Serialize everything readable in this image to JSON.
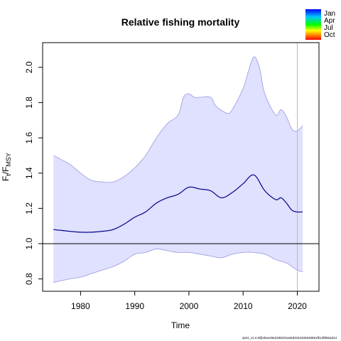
{
  "chart_data": {
    "type": "line",
    "title": "Relative fishing mortality",
    "xlabel": "Time",
    "ylabel_main": "F",
    "ylabel_sub1": "t",
    "ylabel_sep": "/F",
    "ylabel_sub2": "MSY",
    "xlim": [
      1973,
      2024
    ],
    "ylim": [
      0.73,
      2.14
    ],
    "x_ticks": [
      1980,
      1990,
      2000,
      2010,
      2020
    ],
    "y_ticks": [
      0.8,
      1.0,
      1.2,
      1.4,
      1.6,
      1.8,
      2.0
    ],
    "y_tick_labels": [
      "0.8",
      "1.0",
      "1.2",
      "1.4",
      "1.6",
      "1.8",
      "2.0"
    ],
    "reference_line_y": 1.0,
    "vertical_marker_x": 2020,
    "legend": {
      "placement": "top-right",
      "labels": [
        "Jan",
        "Apr",
        "Jul",
        "Oct"
      ],
      "colors": [
        "#0000ff",
        "#00c8ff",
        "#00ff00",
        "#ffff00",
        "#ff8000",
        "#ff0000"
      ]
    },
    "colors": {
      "line": "#00008b",
      "band_fill": "#e0e0ff",
      "band_edge": "#9999dd",
      "marker": "#bbbbbb"
    },
    "series": [
      {
        "role": "median",
        "x": [
          1975,
          1978,
          1980,
          1982,
          1984,
          1986,
          1988,
          1990,
          1992,
          1994,
          1996,
          1998,
          2000,
          2002,
          2004,
          2006,
          2008,
          2010,
          2012,
          2014,
          2016,
          2017,
          2018,
          2019,
          2020,
          2021
        ],
        "values": [
          1.08,
          1.07,
          1.065,
          1.065,
          1.07,
          1.08,
          1.11,
          1.15,
          1.18,
          1.23,
          1.26,
          1.28,
          1.32,
          1.31,
          1.3,
          1.26,
          1.29,
          1.34,
          1.39,
          1.3,
          1.25,
          1.26,
          1.23,
          1.19,
          1.18,
          1.18
        ]
      },
      {
        "role": "upper",
        "x": [
          1975,
          1978,
          1980,
          1982,
          1984,
          1986,
          1988,
          1990,
          1992,
          1994,
          1996,
          1998,
          1999,
          2000,
          2001,
          2002,
          2004,
          2005,
          2007,
          2008,
          2010,
          2011,
          2012,
          2013,
          2014,
          2016,
          2017,
          2018,
          2019,
          2020,
          2021
        ],
        "values": [
          1.5,
          1.45,
          1.4,
          1.36,
          1.35,
          1.35,
          1.38,
          1.43,
          1.5,
          1.6,
          1.68,
          1.73,
          1.83,
          1.85,
          1.83,
          1.83,
          1.83,
          1.78,
          1.74,
          1.76,
          1.88,
          1.98,
          2.06,
          2.0,
          1.85,
          1.73,
          1.76,
          1.72,
          1.65,
          1.64,
          1.67
        ]
      },
      {
        "role": "lower",
        "x": [
          1975,
          1978,
          1980,
          1982,
          1984,
          1986,
          1988,
          1990,
          1992,
          1994,
          1996,
          1998,
          2000,
          2002,
          2004,
          2006,
          2008,
          2010,
          2012,
          2014,
          2016,
          2018,
          2019,
          2020,
          2021
        ],
        "values": [
          0.78,
          0.8,
          0.81,
          0.83,
          0.85,
          0.87,
          0.9,
          0.94,
          0.95,
          0.97,
          0.96,
          0.95,
          0.95,
          0.94,
          0.93,
          0.92,
          0.94,
          0.95,
          0.95,
          0.94,
          0.91,
          0.89,
          0.87,
          0.85,
          0.84
        ]
      }
    ]
  },
  "footer_note": "spict_v1.2.8@ebace9a3195231a26d3cb4332649661fb13f882ad14"
}
